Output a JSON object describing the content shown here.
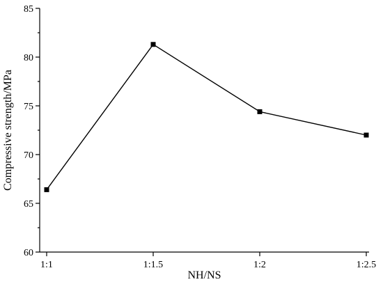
{
  "chart_data": {
    "type": "line",
    "title": "",
    "xlabel": "NH/NS",
    "ylabel": "Compressive strength/MPa",
    "categories": [
      "1:1",
      "1:1.5",
      "1:2",
      "1:2.5"
    ],
    "series": [
      {
        "values": [
          66.4,
          81.3,
          74.4,
          72.0
        ]
      }
    ],
    "ylim": [
      60,
      85
    ],
    "yticks": [
      60,
      65,
      70,
      75,
      80,
      85
    ],
    "grid": false,
    "marker": "square",
    "colors": {
      "line": "#000000",
      "marker": "#000000"
    }
  }
}
